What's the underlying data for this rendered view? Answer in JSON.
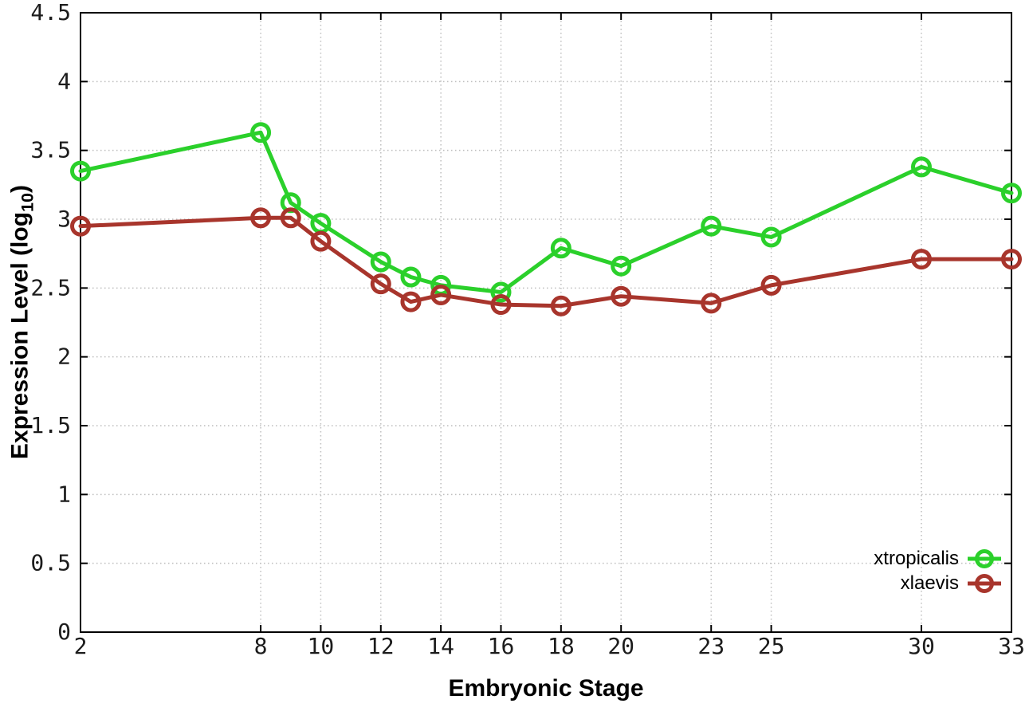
{
  "page": {
    "background": "#ffffff"
  },
  "chart_data": {
    "type": "line",
    "title": "",
    "xlabel": "Embryonic Stage",
    "ylabel": "Expression Level (log10)",
    "ylabel_parts": {
      "prefix": "Expression Level (log",
      "sub": "10",
      "suffix": ")"
    },
    "xlim": [
      2,
      33
    ],
    "ylim": [
      0,
      4.5
    ],
    "xticks": [
      2,
      8,
      10,
      12,
      14,
      16,
      18,
      20,
      23,
      25,
      30,
      33
    ],
    "xtick_labels": [
      "2",
      "8",
      "10",
      "12",
      "14",
      "16",
      "18",
      "20",
      "23",
      "25",
      "30",
      "33"
    ],
    "yticks": [
      0,
      0.5,
      1,
      1.5,
      2,
      2.5,
      3,
      3.5,
      4,
      4.5
    ],
    "ytick_labels": [
      "0",
      "0.5",
      "1",
      "1.5",
      "2",
      "2.5",
      "3",
      "3.5",
      "4",
      "4.5"
    ],
    "grid": true,
    "legend_position": "bottom-right",
    "x": [
      2,
      8,
      9,
      10,
      12,
      13,
      14,
      16,
      18,
      20,
      23,
      25,
      30,
      33
    ],
    "series": [
      {
        "name": "xtropicalis",
        "color": "#2bd02b",
        "marker": "open-circle",
        "values": [
          3.35,
          3.63,
          3.12,
          2.97,
          2.69,
          2.58,
          2.52,
          2.47,
          2.79,
          2.66,
          2.95,
          2.87,
          3.38,
          3.19
        ]
      },
      {
        "name": "xlaevis",
        "color": "#a8352c",
        "marker": "open-circle",
        "values": [
          2.95,
          3.01,
          3.01,
          2.84,
          2.53,
          2.4,
          2.45,
          2.38,
          2.37,
          2.44,
          2.39,
          2.52,
          2.71,
          2.71
        ]
      }
    ],
    "axis_color": "#000000",
    "grid_color": "#bdbdbd",
    "tick_label_color": "#1c1c1c"
  }
}
